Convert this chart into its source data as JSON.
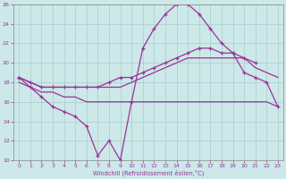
{
  "x": [
    0,
    1,
    2,
    3,
    4,
    5,
    6,
    7,
    8,
    9,
    10,
    11,
    12,
    13,
    14,
    15,
    16,
    17,
    18,
    19,
    20,
    21,
    22,
    23
  ],
  "line_windchill": {
    "y": [
      18.5,
      17.5,
      16.5,
      15.5,
      15.0,
      14.5,
      13.5,
      10.5,
      12.0,
      10.0,
      16.0,
      21.5,
      23.5,
      25.0,
      26.0,
      26.0,
      25.0,
      23.5,
      22.0,
      21.0,
      19.0,
      18.5,
      18.0,
      15.5
    ],
    "marker": true,
    "linewidth": 0.9
  },
  "line_flat": {
    "y": [
      18.0,
      17.5,
      17.0,
      17.0,
      16.5,
      16.5,
      16.0,
      16.0,
      16.0,
      16.0,
      16.0,
      16.0,
      16.0,
      16.0,
      16.0,
      16.0,
      16.0,
      16.0,
      16.0,
      16.0,
      16.0,
      16.0,
      16.0,
      15.5
    ],
    "marker": false,
    "linewidth": 0.9
  },
  "line_rising1": {
    "y": [
      18.5,
      18.0,
      17.5,
      17.5,
      17.5,
      17.5,
      17.5,
      17.5,
      17.5,
      17.5,
      18.0,
      18.5,
      19.0,
      19.5,
      20.0,
      20.5,
      20.5,
      20.5,
      20.5,
      20.5,
      20.5,
      19.5,
      19.0,
      18.5
    ],
    "marker": false,
    "linewidth": 0.9
  },
  "line_rising2": {
    "y": [
      18.5,
      18.0,
      17.5,
      17.5,
      17.5,
      17.5,
      17.5,
      17.5,
      18.0,
      18.5,
      18.5,
      19.0,
      19.5,
      20.0,
      20.5,
      21.0,
      21.5,
      21.5,
      21.0,
      21.0,
      20.5,
      20.0,
      null,
      null
    ],
    "marker": true,
    "linewidth": 0.9
  },
  "color": "#993399",
  "bg_color": "#cce8e8",
  "grid_color": "#aacccc",
  "xlabel": "Windchill (Refroidissement éolien,°C)",
  "ylim": [
    10,
    26
  ],
  "xlim": [
    -0.5,
    23.5
  ],
  "yticks": [
    10,
    12,
    14,
    16,
    18,
    20,
    22,
    24,
    26
  ],
  "xticks": [
    0,
    1,
    2,
    3,
    4,
    5,
    6,
    7,
    8,
    9,
    10,
    11,
    12,
    13,
    14,
    15,
    16,
    17,
    18,
    19,
    20,
    21,
    22,
    23
  ]
}
